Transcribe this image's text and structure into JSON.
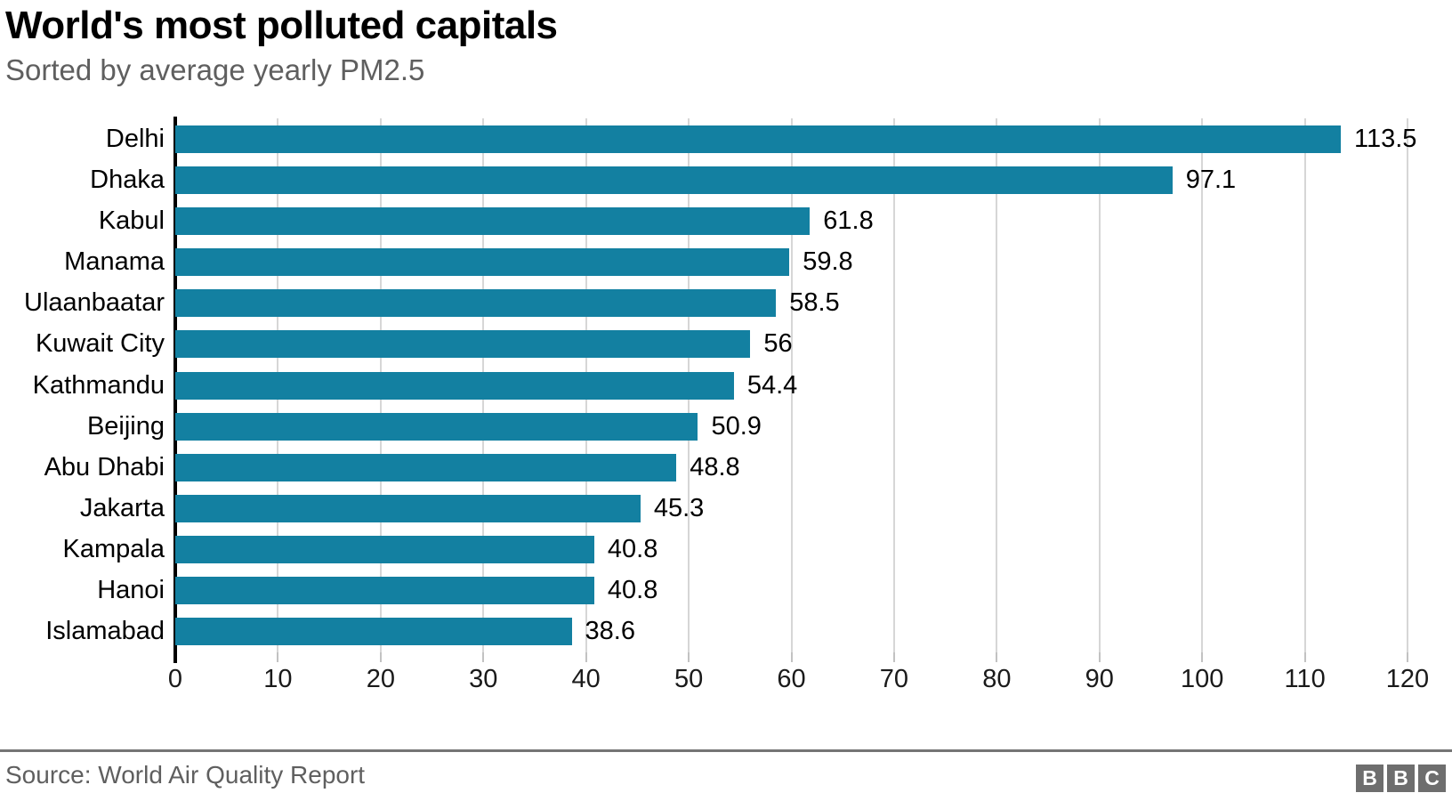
{
  "header": {
    "title": "World's most polluted capitals",
    "subtitle": "Sorted by average yearly PM2.5"
  },
  "chart_data": {
    "type": "bar",
    "orientation": "horizontal",
    "title": "World's most polluted capitals",
    "subtitle": "Sorted by average yearly PM2.5",
    "categories": [
      "Delhi",
      "Dhaka",
      "Kabul",
      "Manama",
      "Ulaanbaatar",
      "Kuwait City",
      "Kathmandu",
      "Beijing",
      "Abu Dhabi",
      "Jakarta",
      "Kampala",
      "Hanoi",
      "Islamabad"
    ],
    "values": [
      113.5,
      97.1,
      61.8,
      59.8,
      58.5,
      56,
      54.4,
      50.9,
      48.8,
      45.3,
      40.8,
      40.8,
      38.6
    ],
    "value_labels": [
      "113.5",
      "97.1",
      "61.8",
      "59.8",
      "58.5",
      "56",
      "54.4",
      "50.9",
      "48.8",
      "45.3",
      "40.8",
      "40.8",
      "38.6"
    ],
    "xlabel": "",
    "ylabel": "",
    "xlim": [
      0,
      120
    ],
    "xticks": [
      0,
      10,
      20,
      30,
      40,
      50,
      60,
      70,
      80,
      90,
      100,
      110,
      120
    ],
    "grid": true,
    "legend": "none",
    "bar_color": "#1380a1",
    "axis_color": "#000000",
    "grid_color": "#d6d6d6",
    "label_color": "#000000"
  },
  "footer": {
    "source": "Source: World Air Quality Report",
    "logo_letters": [
      "B",
      "B",
      "C"
    ]
  }
}
